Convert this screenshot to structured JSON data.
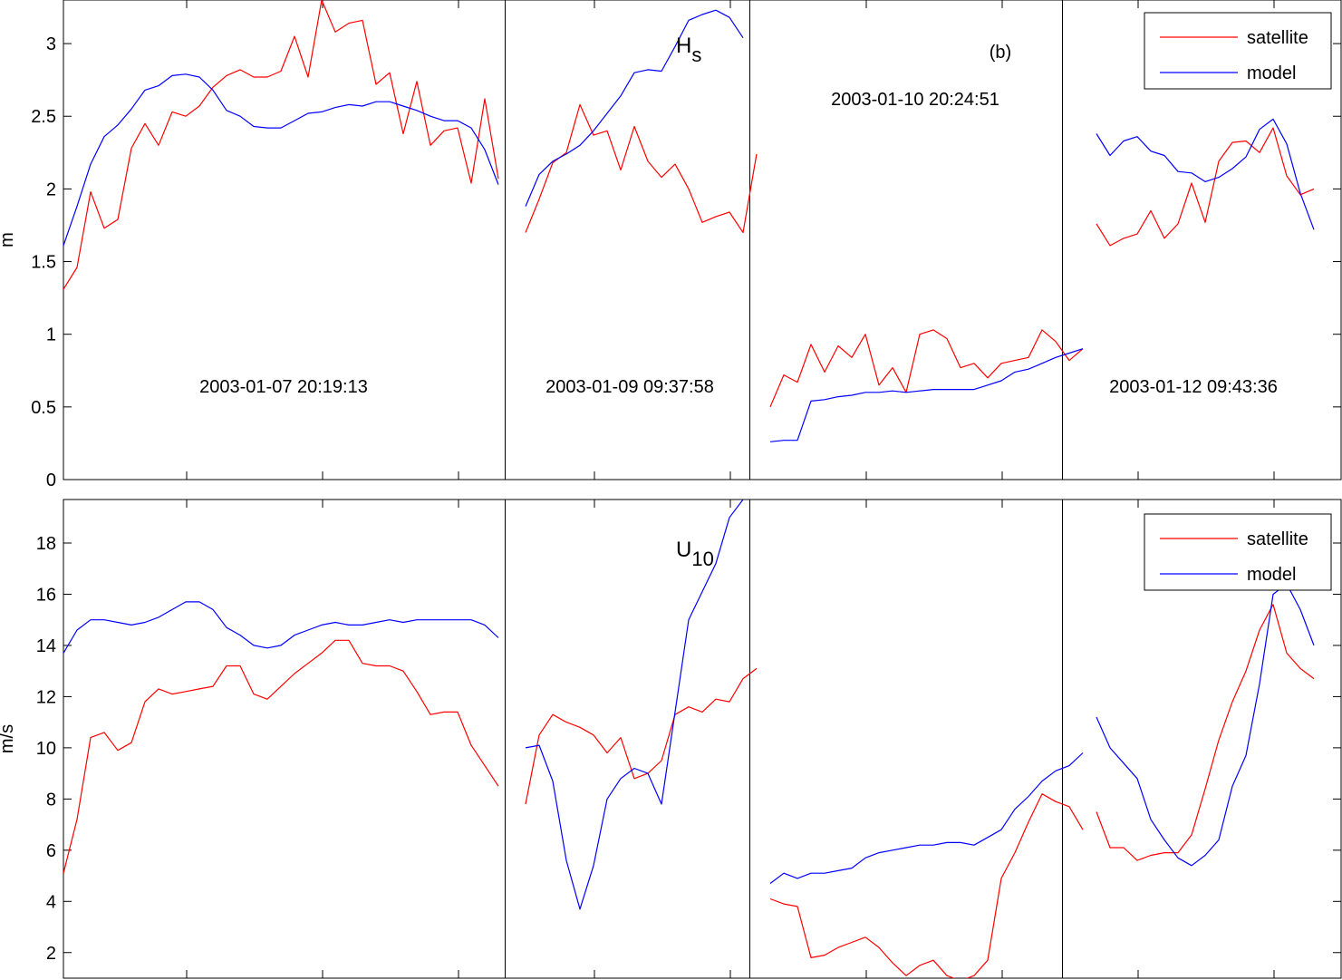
{
  "chart_data": [
    {
      "type": "line",
      "title": "",
      "label": "H",
      "label_sub": "s",
      "panel_tag": "(b)",
      "xlabel": "",
      "ylabel": "m",
      "ylim": [
        0,
        3.3
      ],
      "yticks": [
        0,
        0.5,
        1,
        1.5,
        2,
        2.5,
        3
      ],
      "ytick_labels": [
        "0",
        "0.5",
        "1",
        "1.5",
        "2",
        "2.5",
        "3"
      ],
      "xlim": [
        1,
        95
      ],
      "segment_boundaries": [
        33.5,
        51.5,
        74.5
      ],
      "segment_labels": [
        "2003-01-07 20:19:13",
        "2003-01-09 09:37:58",
        "2003-01-10 20:24:51",
        "2003-01-12 09:43:36"
      ],
      "legend": {
        "position": "top-right",
        "entries": [
          "satellite",
          "model"
        ]
      },
      "series": [
        {
          "name": "satellite",
          "color": "#ff0000",
          "segments": [
            {
              "x_start": 1,
              "values": [
                1.31,
                1.46,
                1.98,
                1.73,
                1.79,
                2.28,
                2.45,
                2.3,
                2.53,
                2.5,
                2.57,
                2.7,
                2.78,
                2.82,
                2.77,
                2.77,
                2.81,
                3.05,
                2.77,
                3.3,
                3.08,
                3.14,
                3.16,
                2.72,
                2.8,
                2.38,
                2.74,
                2.3,
                2.4,
                2.42,
                2.04,
                2.62,
                2.07
              ]
            },
            {
              "x_start": 35,
              "values": [
                1.7,
                1.93,
                2.18,
                2.25,
                2.58,
                2.37,
                2.4,
                2.13,
                2.43,
                2.19,
                2.08,
                2.17,
                2.0,
                1.77,
                1.81,
                1.84,
                1.7,
                2.24
              ]
            },
            {
              "x_start": 53,
              "values": [
                0.5,
                0.72,
                0.67,
                0.93,
                0.74,
                0.92,
                0.84,
                1.0,
                0.65,
                0.77,
                0.6,
                1.0,
                1.03,
                0.97,
                0.77,
                0.8,
                0.7,
                0.8,
                0.82,
                0.84,
                1.03,
                0.95,
                0.82,
                0.9
              ]
            },
            {
              "x_start": 77,
              "values": [
                1.76,
                1.61,
                1.66,
                1.69,
                1.85,
                1.66,
                1.76,
                2.04,
                1.77,
                2.19,
                2.32,
                2.33,
                2.25,
                2.42,
                2.09,
                1.96,
                2.0
              ]
            }
          ]
        },
        {
          "name": "model",
          "color": "#0000ff",
          "segments": [
            {
              "x_start": 1,
              "values": [
                1.61,
                1.88,
                2.17,
                2.36,
                2.44,
                2.55,
                2.68,
                2.71,
                2.78,
                2.79,
                2.77,
                2.68,
                2.54,
                2.5,
                2.43,
                2.42,
                2.42,
                2.47,
                2.52,
                2.53,
                2.56,
                2.58,
                2.57,
                2.6,
                2.6,
                2.57,
                2.54,
                2.5,
                2.47,
                2.47,
                2.42,
                2.27,
                2.03
              ]
            },
            {
              "x_start": 35,
              "values": [
                1.88,
                2.1,
                2.19,
                2.24,
                2.3,
                2.4,
                2.52,
                2.64,
                2.8,
                2.82,
                2.81,
                2.98,
                3.16,
                3.2,
                3.23,
                3.18,
                3.04
              ]
            },
            {
              "x_start": 53,
              "values": [
                0.26,
                0.27,
                0.27,
                0.54,
                0.55,
                0.57,
                0.58,
                0.6,
                0.6,
                0.61,
                0.6,
                0.61,
                0.62,
                0.62,
                0.62,
                0.62,
                0.65,
                0.68,
                0.74,
                0.76,
                0.8,
                0.84,
                0.87,
                0.9
              ]
            },
            {
              "x_start": 77,
              "values": [
                2.38,
                2.23,
                2.33,
                2.36,
                2.26,
                2.23,
                2.12,
                2.11,
                2.05,
                2.08,
                2.14,
                2.22,
                2.41,
                2.48,
                2.31,
                1.97,
                1.72
              ]
            }
          ]
        }
      ]
    },
    {
      "type": "line",
      "title": "",
      "label": "U",
      "label_sub": "10",
      "xlabel": "",
      "ylabel": "m/s",
      "ylim": [
        1,
        19.7
      ],
      "yticks": [
        2,
        4,
        6,
        8,
        10,
        12,
        14,
        16,
        18
      ],
      "ytick_labels": [
        "2",
        "4",
        "6",
        "8",
        "10",
        "12",
        "14",
        "16",
        "18"
      ],
      "xlim": [
        1,
        95
      ],
      "segment_boundaries": [
        33.5,
        51.5,
        74.5
      ],
      "legend": {
        "position": "top-right",
        "entries": [
          "satellite",
          "model"
        ]
      },
      "series": [
        {
          "name": "satellite",
          "color": "#ff0000",
          "segments": [
            {
              "x_start": 1,
              "values": [
                5.1,
                7.2,
                10.4,
                10.6,
                9.9,
                10.2,
                11.8,
                12.3,
                12.1,
                12.2,
                12.3,
                12.4,
                13.2,
                13.2,
                12.1,
                11.9,
                12.4,
                12.9,
                13.3,
                13.7,
                14.2,
                14.2,
                13.3,
                13.2,
                13.2,
                13.0,
                12.2,
                11.3,
                11.4,
                11.4,
                10.1,
                9.3,
                8.5
              ]
            },
            {
              "x_start": 35,
              "values": [
                7.8,
                10.5,
                11.3,
                11.0,
                10.8,
                10.5,
                9.8,
                10.4,
                8.8,
                9.0,
                9.5,
                11.3,
                11.6,
                11.4,
                11.9,
                11.8,
                12.7,
                13.1
              ]
            },
            {
              "x_start": 53,
              "values": [
                4.1,
                3.9,
                3.8,
                1.8,
                1.9,
                2.2,
                2.4,
                2.6,
                2.2,
                1.6,
                1.1,
                1.5,
                1.7,
                1.1,
                0.9,
                1.1,
                1.7,
                4.9,
                5.9,
                7.1,
                8.2,
                7.9,
                7.7,
                6.8
              ]
            },
            {
              "x_start": 77,
              "values": [
                7.5,
                6.1,
                6.1,
                5.6,
                5.8,
                5.9,
                5.9,
                6.6,
                8.4,
                10.3,
                11.8,
                13.0,
                14.6,
                15.6,
                13.7,
                13.1,
                12.7
              ]
            }
          ]
        },
        {
          "name": "model",
          "color": "#0000ff",
          "segments": [
            {
              "x_start": 1,
              "values": [
                13.7,
                14.6,
                15.0,
                15.0,
                14.9,
                14.8,
                14.9,
                15.1,
                15.4,
                15.7,
                15.7,
                15.4,
                14.7,
                14.4,
                14.0,
                13.9,
                14.0,
                14.4,
                14.6,
                14.8,
                14.9,
                14.8,
                14.8,
                14.9,
                15.0,
                14.9,
                15.0,
                15.0,
                15.0,
                15.0,
                15.0,
                14.8,
                14.3
              ]
            },
            {
              "x_start": 35,
              "values": [
                10.0,
                10.1,
                8.7,
                5.6,
                3.7,
                5.4,
                8.0,
                8.8,
                9.2,
                9.0,
                7.8,
                11.4,
                15.0,
                16.1,
                17.2,
                19.0,
                19.7
              ]
            },
            {
              "x_start": 53,
              "values": [
                4.7,
                5.1,
                4.9,
                5.1,
                5.1,
                5.2,
                5.3,
                5.7,
                5.9,
                6.0,
                6.1,
                6.2,
                6.2,
                6.3,
                6.3,
                6.2,
                6.5,
                6.8,
                7.6,
                8.1,
                8.7,
                9.1,
                9.3,
                9.8
              ]
            },
            {
              "x_start": 77,
              "values": [
                11.2,
                10.0,
                9.4,
                8.8,
                7.2,
                6.4,
                5.7,
                5.4,
                5.8,
                6.4,
                8.5,
                9.7,
                12.5,
                16.0,
                16.4,
                15.4,
                14.0
              ]
            }
          ]
        }
      ]
    }
  ]
}
